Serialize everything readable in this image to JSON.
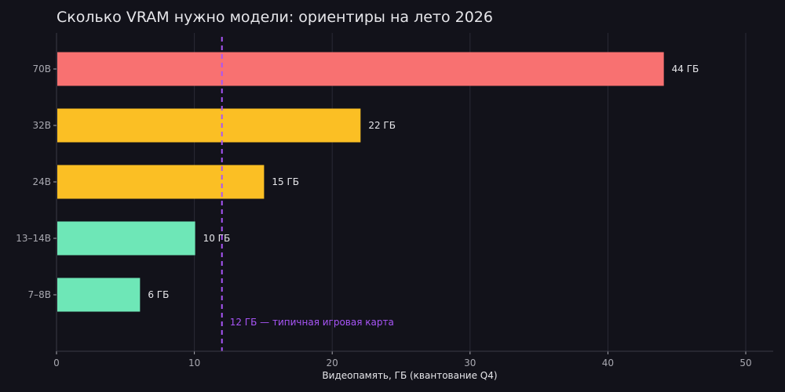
{
  "chart_data": {
    "type": "bar",
    "orientation": "horizontal",
    "title": "Сколько VRAM нужно модели: ориентиры на лето 2026",
    "xlabel": "Видеопамять, ГБ (квантование Q4)",
    "ylabel": "",
    "xlim": [
      0,
      52
    ],
    "xticks": [
      0,
      10,
      20,
      30,
      40,
      50
    ],
    "grid": "vertical",
    "categories": [
      "70B",
      "32B",
      "24B",
      "13–14B",
      "7–8B"
    ],
    "values": [
      44,
      22,
      15,
      10,
      6
    ],
    "value_labels": [
      "44 ГБ",
      "22 ГБ",
      "15 ГБ",
      "10 ГБ",
      "6 ГБ"
    ],
    "bar_colors": [
      "#f87171",
      "#fbbf24",
      "#fbbf24",
      "#6ee7b7",
      "#6ee7b7"
    ],
    "reference_line": {
      "value": 12,
      "label": "12 ГБ — типичная игровая карта",
      "color": "#a855f7",
      "style": "dashed"
    },
    "background_color": "#12121a",
    "grid_color": "#2a2a36"
  }
}
